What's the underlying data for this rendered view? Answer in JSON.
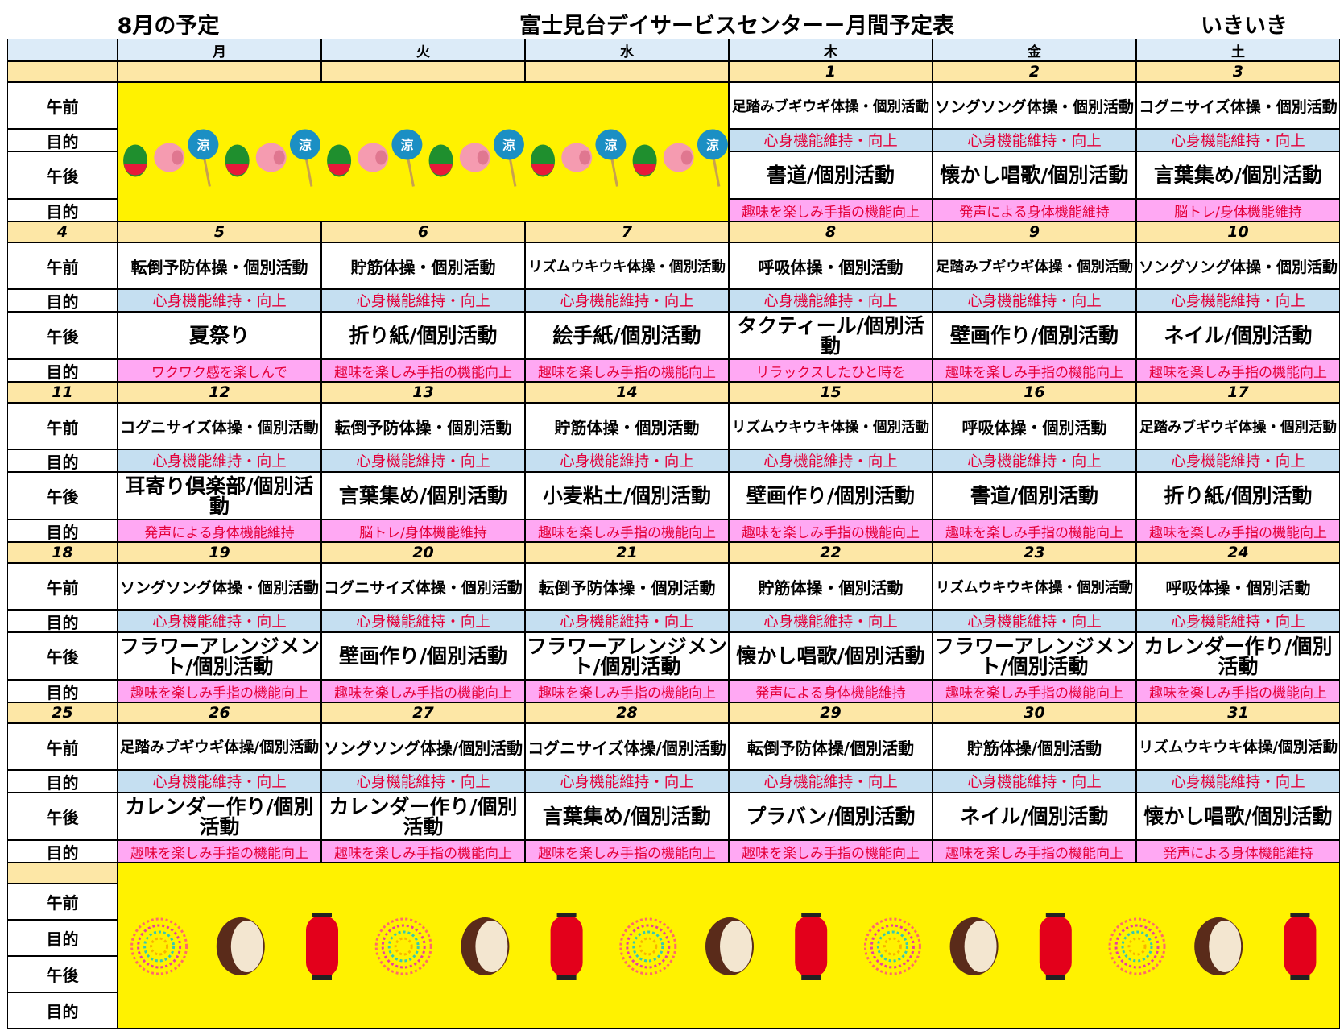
{
  "header": {
    "month": "8月の予定",
    "title": "富士見台デイサービスセンター－月間予定表",
    "unit": "いきいき"
  },
  "weekdays": [
    "月",
    "火",
    "水",
    "木",
    "金",
    "土"
  ],
  "row_labels": [
    "午前",
    "目的",
    "午後",
    "目的"
  ],
  "weeks": [
    {
      "days": [
        {
          "date": 1,
          "am": "足踏みブギウギ体操・個別活動",
          "am_goal": "心身機能維持・向上",
          "pm": "書道/個別活動",
          "pm_goal": "趣味を楽しみ手指の機能向上"
        },
        {
          "date": 2,
          "am": "ソングソング体操・個別活動",
          "am_goal": "心身機能維持・向上",
          "pm": "懐かし唱歌/個別活動",
          "pm_goal": "発声による身体機能維持"
        },
        {
          "date": 3,
          "am": "コグニサイズ体操・個別活動",
          "am_goal": "心身機能維持・向上",
          "pm": "言葉集め/個別活動",
          "pm_goal": "脳トレ/身体機能維持"
        }
      ]
    },
    {
      "sunday": 4,
      "days": [
        {
          "date": 5,
          "am": "転倒予防体操・個別活動",
          "am_goal": "心身機能維持・向上",
          "pm": "夏祭り",
          "pm_goal": "ワクワク感を楽しんで"
        },
        {
          "date": 6,
          "am": "貯筋体操・個別活動",
          "am_goal": "心身機能維持・向上",
          "pm": "折り紙/個別活動",
          "pm_goal": "趣味を楽しみ手指の機能向上"
        },
        {
          "date": 7,
          "am": "リズムウキウキ体操・個別活動",
          "am_goal": "心身機能維持・向上",
          "pm": "絵手紙/個別活動",
          "pm_goal": "趣味を楽しみ手指の機能向上"
        },
        {
          "date": 8,
          "am": "呼吸体操・個別活動",
          "am_goal": "心身機能維持・向上",
          "pm": "タクティール/個別活動",
          "pm_goal": "リラックスしたひと時を"
        },
        {
          "date": 9,
          "am": "足踏みブギウギ体操・個別活動",
          "am_goal": "心身機能維持・向上",
          "pm": "壁画作り/個別活動",
          "pm_goal": "趣味を楽しみ手指の機能向上"
        },
        {
          "date": 10,
          "am": "ソングソング体操・個別活動",
          "am_goal": "心身機能維持・向上",
          "pm": "ネイル/個別活動",
          "pm_goal": "趣味を楽しみ手指の機能向上"
        }
      ]
    },
    {
      "sunday": 11,
      "days": [
        {
          "date": 12,
          "am": "コグニサイズ体操・個別活動",
          "am_goal": "心身機能維持・向上",
          "pm": "耳寄り倶楽部/個別活動",
          "pm_goal": "発声による身体機能維持"
        },
        {
          "date": 13,
          "am": "転倒予防体操・個別活動",
          "am_goal": "心身機能維持・向上",
          "pm": "言葉集め/個別活動",
          "pm_goal": "脳トレ/身体機能維持"
        },
        {
          "date": 14,
          "am": "貯筋体操・個別活動",
          "am_goal": "心身機能維持・向上",
          "pm": "小麦粘土/個別活動",
          "pm_goal": "趣味を楽しみ手指の機能向上"
        },
        {
          "date": 15,
          "am": "リズムウキウキ体操・個別活動",
          "am_goal": "心身機能維持・向上",
          "pm": "壁画作り/個別活動",
          "pm_goal": "趣味を楽しみ手指の機能向上"
        },
        {
          "date": 16,
          "am": "呼吸体操・個別活動",
          "am_goal": "心身機能維持・向上",
          "pm": "書道/個別活動",
          "pm_goal": "趣味を楽しみ手指の機能向上"
        },
        {
          "date": 17,
          "am": "足踏みブギウギ体操・個別活動",
          "am_goal": "心身機能維持・向上",
          "pm": "折り紙/個別活動",
          "pm_goal": "趣味を楽しみ手指の機能向上"
        }
      ]
    },
    {
      "sunday": 18,
      "days": [
        {
          "date": 19,
          "am": "ソングソング体操・個別活動",
          "am_goal": "心身機能維持・向上",
          "pm": "フラワーアレンジメント/個別活動",
          "pm_goal": "趣味を楽しみ手指の機能向上"
        },
        {
          "date": 20,
          "am": "コグニサイズ体操・個別活動",
          "am_goal": "心身機能維持・向上",
          "pm": "壁画作り/個別活動",
          "pm_goal": "趣味を楽しみ手指の機能向上"
        },
        {
          "date": 21,
          "am": "転倒予防体操・個別活動",
          "am_goal": "心身機能維持・向上",
          "pm": "フラワーアレンジメント/個別活動",
          "pm_goal": "趣味を楽しみ手指の機能向上"
        },
        {
          "date": 22,
          "am": "貯筋体操・個別活動",
          "am_goal": "心身機能維持・向上",
          "pm": "懐かし唱歌/個別活動",
          "pm_goal": "発声による身体機能維持"
        },
        {
          "date": 23,
          "am": "リズムウキウキ体操・個別活動",
          "am_goal": "心身機能維持・向上",
          "pm": "フラワーアレンジメント/個別活動",
          "pm_goal": "趣味を楽しみ手指の機能向上"
        },
        {
          "date": 24,
          "am": "呼吸体操・個別活動",
          "am_goal": "心身機能維持・向上",
          "pm": "カレンダー作り/個別活動",
          "pm_goal": "趣味を楽しみ手指の機能向上"
        }
      ]
    },
    {
      "sunday": 25,
      "days": [
        {
          "date": 26,
          "am": "足踏みブギウギ体操/個別活動",
          "am_goal": "心身機能維持・向上",
          "pm": "カレンダー作り/個別活動",
          "pm_goal": "趣味を楽しみ手指の機能向上"
        },
        {
          "date": 27,
          "am": "ソングソング体操/個別活動",
          "am_goal": "心身機能維持・向上",
          "pm": "カレンダー作り/個別活動",
          "pm_goal": "趣味を楽しみ手指の機能向上"
        },
        {
          "date": 28,
          "am": "コグニサイズ体操/個別活動",
          "am_goal": "心身機能維持・向上",
          "pm": "言葉集め/個別活動",
          "pm_goal": "趣味を楽しみ手指の機能向上"
        },
        {
          "date": 29,
          "am": "転倒予防体操/個別活動",
          "am_goal": "心身機能維持・向上",
          "pm": "プラバン/個別活動",
          "pm_goal": "趣味を楽しみ手指の機能向上"
        },
        {
          "date": 30,
          "am": "貯筋体操/個別活動",
          "am_goal": "心身機能維持・向上",
          "pm": "ネイル/個別活動",
          "pm_goal": "趣味を楽しみ手指の機能向上"
        },
        {
          "date": 31,
          "am": "リズムウキウキ体操/個別活動",
          "am_goal": "心身機能維持・向上",
          "pm": "懐かし唱歌/個別活動",
          "pm_goal": "発声による身体機能維持"
        }
      ]
    },
    {
      "days": []
    }
  ]
}
